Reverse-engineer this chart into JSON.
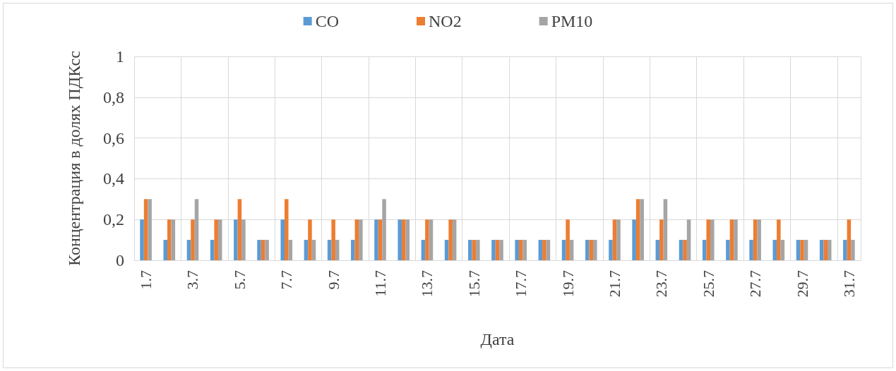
{
  "chart_data": {
    "type": "bar",
    "xlabel": "Дата",
    "ylabel": "Концентрация в долях ПДКсс",
    "categories": [
      "1.7",
      null,
      "3.7",
      null,
      "5.7",
      null,
      "7.7",
      null,
      "9.7",
      null,
      "11.7",
      null,
      "13.7",
      null,
      "15.7",
      null,
      "17.7",
      null,
      "19.7",
      null,
      "21.7",
      null,
      "23.7",
      null,
      "25.7",
      null,
      "27.7",
      null,
      "29.7",
      null,
      "31.7"
    ],
    "series": [
      {
        "name": "CO",
        "color": "#5b9bd5",
        "values": [
          0.2,
          0.1,
          0.1,
          0.1,
          0.2,
          0.1,
          0.2,
          0.1,
          0.1,
          0.1,
          0.2,
          0.2,
          0.1,
          0.1,
          0.1,
          0.1,
          0.1,
          0.1,
          0.1,
          0.1,
          0.1,
          0.2,
          0.1,
          0.1,
          0.1,
          0.1,
          0.1,
          0.1,
          0.1,
          0.1,
          0.1
        ]
      },
      {
        "name": "NO2",
        "color": "#ed7d31",
        "values": [
          0.3,
          0.2,
          0.2,
          0.2,
          0.3,
          0.1,
          0.3,
          0.2,
          0.2,
          0.2,
          0.2,
          0.2,
          0.2,
          0.2,
          0.1,
          0.1,
          0.1,
          0.1,
          0.2,
          0.1,
          0.2,
          0.3,
          0.2,
          0.1,
          0.2,
          0.2,
          0.2,
          0.2,
          0.1,
          0.1,
          0.2
        ]
      },
      {
        "name": "PM10",
        "color": "#a5a5a5",
        "values": [
          0.3,
          0.2,
          0.3,
          0.2,
          0.2,
          0.1,
          0.1,
          0.1,
          0.1,
          0.2,
          0.3,
          0.2,
          0.2,
          0.2,
          0.1,
          0.1,
          0.1,
          0.1,
          0.1,
          0.1,
          0.2,
          0.3,
          0.3,
          0.2,
          0.2,
          0.2,
          0.2,
          0.1,
          0.1,
          0.1,
          0.1
        ]
      }
    ],
    "ylim": [
      0,
      1
    ],
    "yticks": [
      0,
      {
        "value": 0.2,
        "label": "0,2"
      },
      {
        "value": 0.4,
        "label": "0,4"
      },
      {
        "value": 0.6,
        "label": "0,6"
      },
      {
        "value": 0.8,
        "label": "0,8"
      },
      1
    ],
    "grid": true,
    "legend": "top"
  }
}
